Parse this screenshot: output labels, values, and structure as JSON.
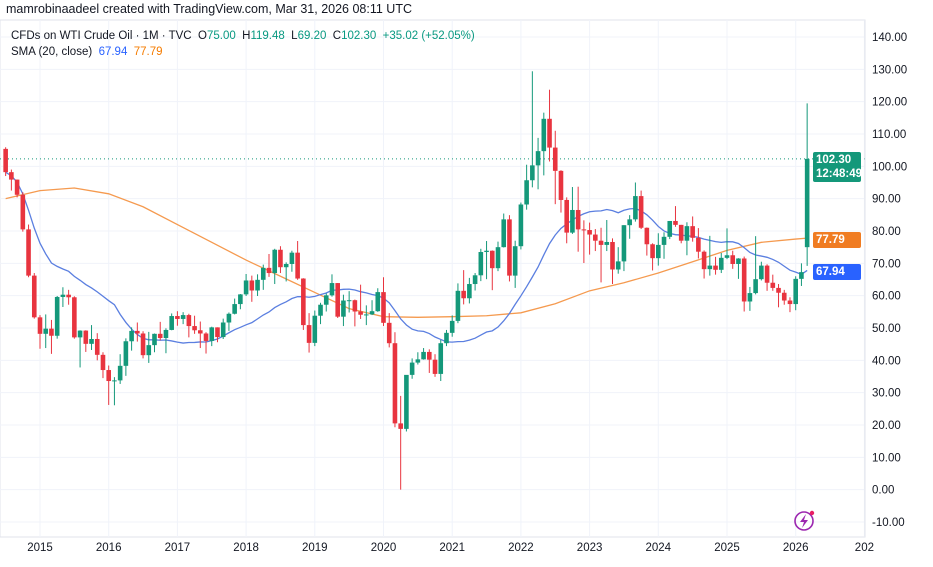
{
  "credit": "mamrobinaadeel created with TradingView.com, Mar 31, 2026 08:11 UTC",
  "legend": {
    "symbol": "CFDs on WTI Crude Oil · 1M · TVC",
    "open_label": "O",
    "open": "75.00",
    "high_label": "H",
    "high": "119.48",
    "low_label": "L",
    "low": "69.20",
    "close_label": "C",
    "close": "102.30",
    "change": "+35.02 (+52.05%)",
    "sma_label": "SMA (20, close)",
    "sma_value_1": "67.94",
    "sma_value_2": "77.79"
  },
  "price_tag": {
    "price": "102.30",
    "countdown": "12:48:49"
  },
  "sma_tags": {
    "blue": "67.94",
    "orange": "77.79"
  },
  "colors": {
    "up": "#14987a",
    "down": "#e8343f",
    "sma_blue": "#5b7fe0",
    "sma_orange": "#f59a4f",
    "tag_green": "#14987a",
    "tag_orange": "#f07c22",
    "tag_blue": "#2962ff",
    "logo": "#9c27b0"
  },
  "chart_data": {
    "type": "candlestick",
    "title": "",
    "ylim": [
      -10,
      140
    ],
    "y_ticks": [
      "140.00",
      "130.00",
      "120.00",
      "110.00",
      "100.00",
      "90.00",
      "80.00",
      "70.00",
      "60.00",
      "50.00",
      "40.00",
      "30.00",
      "20.00",
      "10.00",
      "0.00",
      "-10.00"
    ],
    "x_ticks": [
      "2015",
      "2016",
      "2017",
      "2018",
      "2019",
      "2020",
      "2021",
      "2022",
      "2023",
      "2024",
      "2025",
      "2026",
      "202"
    ],
    "grid": true,
    "last_price_line": 102.3,
    "candles": [
      [
        "2014-07",
        105.4,
        105.9,
        97,
        98.2
      ],
      [
        "2014-08",
        98.2,
        99,
        92.5,
        95.9
      ],
      [
        "2014-09",
        95.9,
        95.9,
        90.4,
        91.2
      ],
      [
        "2014-10",
        91.2,
        92,
        79.8,
        80.5
      ],
      [
        "2014-11",
        80.5,
        82,
        65.7,
        66.2
      ],
      [
        "2014-12",
        66.2,
        67,
        52.9,
        53.3
      ],
      [
        "2015-01",
        53.3,
        54,
        43.6,
        48.2
      ],
      [
        "2015-02",
        48.2,
        54.2,
        43.8,
        49.8
      ],
      [
        "2015-03",
        49.8,
        52.5,
        42,
        47.6
      ],
      [
        "2015-04",
        47.6,
        59.9,
        46.7,
        59.6
      ],
      [
        "2015-05",
        59.6,
        62.6,
        56.5,
        60.3
      ],
      [
        "2015-06",
        60.3,
        61.8,
        57.2,
        59.5
      ],
      [
        "2015-07",
        59.5,
        59.8,
        46.7,
        47.1
      ],
      [
        "2015-08",
        47.1,
        49.3,
        37.8,
        49.2
      ],
      [
        "2015-09",
        49.2,
        49.3,
        42.6,
        45.1
      ],
      [
        "2015-10",
        45.1,
        50.9,
        43.2,
        46.6
      ],
      [
        "2015-11",
        46.6,
        48.4,
        40,
        41.7
      ],
      [
        "2015-12",
        41.7,
        42.5,
        34.5,
        37
      ],
      [
        "2016-01",
        37,
        38.4,
        26.2,
        33.6
      ],
      [
        "2016-02",
        33.6,
        34.8,
        26.1,
        33.8
      ],
      [
        "2016-03",
        33.8,
        41.9,
        32.7,
        38.3
      ],
      [
        "2016-04",
        38.3,
        46.8,
        35.2,
        45.9
      ],
      [
        "2016-05",
        45.9,
        50.2,
        43,
        49.1
      ],
      [
        "2016-06",
        49.1,
        51.7,
        45.8,
        48.3
      ],
      [
        "2016-07",
        48.3,
        49,
        40.6,
        41.6
      ],
      [
        "2016-08",
        41.6,
        48.8,
        39.2,
        44.7
      ],
      [
        "2016-09",
        44.7,
        48.3,
        42.5,
        48.2
      ],
      [
        "2016-10",
        48.2,
        51.9,
        46.2,
        46.9
      ],
      [
        "2016-11",
        46.9,
        49.9,
        42.2,
        49.4
      ],
      [
        "2016-12",
        49.4,
        54.5,
        49.3,
        53.7
      ],
      [
        "2017-01",
        53.7,
        55.2,
        50.7,
        52.8
      ],
      [
        "2017-02",
        52.8,
        54.9,
        51.2,
        54
      ],
      [
        "2017-03",
        54,
        54.4,
        47.1,
        50.6
      ],
      [
        "2017-04",
        50.6,
        53.8,
        48.2,
        49.3
      ],
      [
        "2017-05",
        49.3,
        52,
        43.8,
        48.3
      ],
      [
        "2017-06",
        48.3,
        48.7,
        42.1,
        46
      ],
      [
        "2017-07",
        46,
        50.4,
        44.4,
        50.2
      ],
      [
        "2017-08",
        50.2,
        50.2,
        45.6,
        47.2
      ],
      [
        "2017-09",
        47.2,
        52.9,
        46.6,
        51.7
      ],
      [
        "2017-10",
        51.7,
        54.8,
        49.1,
        54.4
      ],
      [
        "2017-11",
        54.4,
        59.1,
        54.2,
        57.4
      ],
      [
        "2017-12",
        57.4,
        60.5,
        55.8,
        60.4
      ],
      [
        "2018-01",
        60.4,
        66.7,
        59.9,
        64.7
      ],
      [
        "2018-02",
        64.7,
        66.2,
        58.1,
        61.6
      ],
      [
        "2018-03",
        61.6,
        66.6,
        59.9,
        64.9
      ],
      [
        "2018-04",
        64.9,
        69.6,
        61.8,
        68.6
      ],
      [
        "2018-05",
        68.6,
        72.9,
        65.8,
        67
      ],
      [
        "2018-06",
        67,
        74.5,
        63.6,
        74.2
      ],
      [
        "2018-07",
        74.2,
        75.3,
        67,
        68.8
      ],
      [
        "2018-08",
        68.8,
        70.3,
        64.4,
        69.8
      ],
      [
        "2018-09",
        69.8,
        73.9,
        67.4,
        73.3
      ],
      [
        "2018-10",
        73.3,
        76.9,
        64.9,
        65.3
      ],
      [
        "2018-11",
        65.3,
        65.4,
        49.4,
        50.9
      ],
      [
        "2018-12",
        50.9,
        54.6,
        42.4,
        45.4
      ],
      [
        "2019-01",
        45.4,
        55.4,
        44.4,
        53.8
      ],
      [
        "2019-02",
        53.8,
        57.8,
        51.2,
        57.2
      ],
      [
        "2019-03",
        57.2,
        60.7,
        55.1,
        60.1
      ],
      [
        "2019-04",
        60.1,
        66.6,
        59.7,
        63.9
      ],
      [
        "2019-05",
        63.9,
        63.9,
        53.1,
        53.5
      ],
      [
        "2019-06",
        53.5,
        60.3,
        50.6,
        58.5
      ],
      [
        "2019-07",
        58.5,
        61.4,
        54.8,
        58.6
      ],
      [
        "2019-08",
        58.6,
        58.8,
        50.5,
        55.1
      ],
      [
        "2019-09",
        55.1,
        63.4,
        52.8,
        54.1
      ],
      [
        "2019-10",
        54.1,
        57,
        50.9,
        54.2
      ],
      [
        "2019-11",
        54.2,
        58.6,
        54,
        55.2
      ],
      [
        "2019-12",
        55.2,
        62.3,
        55,
        61.1
      ],
      [
        "2020-01",
        61.1,
        65.7,
        50.6,
        51.6
      ],
      [
        "2020-02",
        51.6,
        54.6,
        44,
        45.3
      ],
      [
        "2020-03",
        45.3,
        48.7,
        19.3,
        20.5
      ],
      [
        "2020-04",
        20.5,
        29,
        0,
        18.8
      ],
      [
        "2020-05",
        18.8,
        35.4,
        18,
        35.5
      ],
      [
        "2020-06",
        35.5,
        40.6,
        34.3,
        39.3
      ],
      [
        "2020-07",
        39.3,
        42.5,
        38.7,
        40.3
      ],
      [
        "2020-08",
        40.3,
        43.8,
        40.2,
        42.6
      ],
      [
        "2020-09",
        42.6,
        43.4,
        36.1,
        40.2
      ],
      [
        "2020-10",
        40.2,
        41.9,
        34.9,
        35.8
      ],
      [
        "2020-11",
        35.8,
        46.3,
        33.6,
        45.3
      ],
      [
        "2020-12",
        45.3,
        49.4,
        44.4,
        48.5
      ],
      [
        "2021-01",
        48.5,
        53.9,
        47.3,
        52.2
      ],
      [
        "2021-02",
        52.2,
        63.8,
        51.5,
        61.5
      ],
      [
        "2021-03",
        61.5,
        67.9,
        57.3,
        59.2
      ],
      [
        "2021-04",
        59.2,
        65.5,
        57.6,
        63.6
      ],
      [
        "2021-05",
        63.6,
        67,
        61.6,
        66.3
      ],
      [
        "2021-06",
        66.3,
        74.5,
        64.5,
        73.5
      ],
      [
        "2021-07",
        73.5,
        76.9,
        65.1,
        73.9
      ],
      [
        "2021-08",
        73.9,
        74,
        61.7,
        68.5
      ],
      [
        "2021-09",
        68.5,
        76.7,
        67.6,
        75
      ],
      [
        "2021-10",
        75,
        85.4,
        74.9,
        83.6
      ],
      [
        "2021-11",
        83.6,
        84.9,
        64.4,
        66.2
      ],
      [
        "2021-12",
        66.2,
        77,
        62.4,
        75.3
      ],
      [
        "2022-01",
        75.3,
        88.8,
        74.3,
        88.2
      ],
      [
        "2022-02",
        88.2,
        100.5,
        86.6,
        95.7
      ],
      [
        "2022-03",
        95.7,
        129.4,
        93.5,
        100.3
      ],
      [
        "2022-04",
        100.3,
        108.8,
        92.9,
        104.7
      ],
      [
        "2022-05",
        104.7,
        116.6,
        97.2,
        114.7
      ],
      [
        "2022-06",
        114.7,
        123.7,
        101.5,
        105.8
      ],
      [
        "2022-07",
        105.8,
        111,
        88.3,
        98.6
      ],
      [
        "2022-08",
        98.6,
        98.8,
        85.7,
        89.6
      ],
      [
        "2022-09",
        89.6,
        90.4,
        76.2,
        79.5
      ],
      [
        "2022-10",
        79.5,
        93.6,
        79.1,
        86.5
      ],
      [
        "2022-11",
        86.5,
        93.7,
        73.6,
        80.5
      ],
      [
        "2022-12",
        80.5,
        83.3,
        70.1,
        80.3
      ],
      [
        "2023-01",
        80.3,
        82.6,
        72.7,
        78.9
      ],
      [
        "2023-02",
        78.9,
        80.6,
        73.8,
        77
      ],
      [
        "2023-03",
        77,
        81,
        64.1,
        75.7
      ],
      [
        "2023-04",
        75.7,
        83.4,
        73.8,
        76.6
      ],
      [
        "2023-05",
        76.6,
        77.7,
        63.6,
        68.1
      ],
      [
        "2023-06",
        68.1,
        75,
        66.8,
        70.6
      ],
      [
        "2023-07",
        70.6,
        81.8,
        67.6,
        81.8
      ],
      [
        "2023-08",
        81.8,
        84.9,
        77.6,
        83.6
      ],
      [
        "2023-09",
        83.6,
        95,
        82.9,
        90.8
      ],
      [
        "2023-10",
        90.8,
        92.5,
        80.6,
        81
      ],
      [
        "2023-11",
        81,
        81.1,
        72.4,
        75.9
      ],
      [
        "2023-12",
        75.9,
        76.2,
        67.8,
        71.6
      ],
      [
        "2024-01",
        71.6,
        79.3,
        69.3,
        75.7
      ],
      [
        "2024-02",
        75.7,
        79.6,
        71.4,
        78.2
      ],
      [
        "2024-03",
        78.2,
        83.1,
        77.5,
        83.1
      ],
      [
        "2024-04",
        83.1,
        87.7,
        81.3,
        81.9
      ],
      [
        "2024-05",
        81.9,
        81.9,
        76.2,
        77
      ],
      [
        "2024-06",
        77,
        82.7,
        72.5,
        81.5
      ],
      [
        "2024-07",
        81.5,
        84.5,
        76.7,
        77.9
      ],
      [
        "2024-08",
        77.9,
        80.9,
        71.5,
        73.6
      ],
      [
        "2024-09",
        73.6,
        74,
        65.3,
        68.2
      ],
      [
        "2024-10",
        68.2,
        78.5,
        66.2,
        69.3
      ],
      [
        "2024-11",
        69.3,
        72,
        66.5,
        68
      ],
      [
        "2024-12",
        68,
        73.2,
        67,
        71.7
      ],
      [
        "2025-01",
        71.7,
        80.8,
        71.3,
        72.5
      ],
      [
        "2025-02",
        72.5,
        73.9,
        68.3,
        69.8
      ],
      [
        "2025-03",
        69.8,
        71.6,
        65.2,
        71.5
      ],
      [
        "2025-04",
        71.5,
        72.1,
        55.1,
        58.2
      ],
      [
        "2025-05",
        58.2,
        62.7,
        55.3,
        60.8
      ],
      [
        "2025-06",
        60.8,
        78.4,
        60.4,
        65.1
      ],
      [
        "2025-07",
        65.1,
        70.5,
        64.7,
        69.3
      ],
      [
        "2025-08",
        69.3,
        69.7,
        61.5,
        64
      ],
      [
        "2025-09",
        64,
        66.5,
        61.5,
        62.4
      ],
      [
        "2025-10",
        62.4,
        63.6,
        56.4,
        60.9
      ],
      [
        "2025-11",
        60.9,
        61.8,
        57.2,
        58.5
      ],
      [
        "2025-12",
        58.5,
        59.5,
        54.9,
        57.4
      ],
      [
        "2026-01",
        57.4,
        66,
        55.5,
        65.2
      ],
      [
        "2026-02",
        65.2,
        70,
        63,
        67.28
      ],
      [
        "2026-03",
        75,
        119.48,
        69.2,
        102.3
      ]
    ],
    "sma_blue_length": 20,
    "sma_orange_points": [
      [
        "2014-07",
        90
      ],
      [
        "2015-01",
        92.5
      ],
      [
        "2015-07",
        93.3
      ],
      [
        "2016-01",
        91.5
      ],
      [
        "2016-07",
        87.5
      ],
      [
        "2017-01",
        82
      ],
      [
        "2017-07",
        76.5
      ],
      [
        "2018-01",
        71
      ],
      [
        "2018-07",
        66
      ],
      [
        "2019-01",
        61
      ],
      [
        "2019-07",
        56
      ],
      [
        "2020-01",
        53.5
      ],
      [
        "2020-07",
        53.3
      ],
      [
        "2021-01",
        53.5
      ],
      [
        "2021-07",
        53.8
      ],
      [
        "2022-01",
        54.7
      ],
      [
        "2022-07",
        57.5
      ],
      [
        "2023-01",
        61.5
      ],
      [
        "2023-07",
        64
      ],
      [
        "2024-01",
        67
      ],
      [
        "2024-07",
        70.5
      ],
      [
        "2025-01",
        74
      ],
      [
        "2025-07",
        76.5
      ],
      [
        "2026-01",
        77.5
      ],
      [
        "2026-03",
        77.79
      ]
    ]
  }
}
